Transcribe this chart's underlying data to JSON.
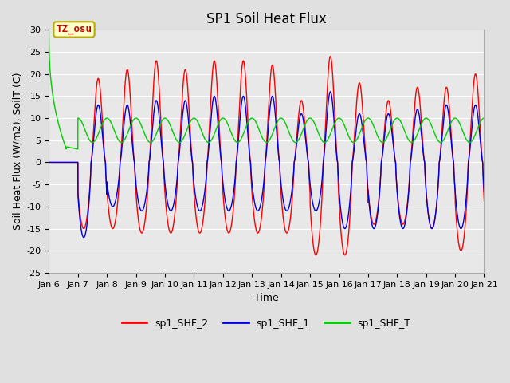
{
  "title": "SP1 Soil Heat Flux",
  "xlabel": "Time",
  "ylabel": "Soil Heat Flux (W/m2), SoilT (C)",
  "ylim": [
    -25,
    30
  ],
  "yticks": [
    -25,
    -20,
    -15,
    -10,
    -5,
    0,
    5,
    10,
    15,
    20,
    25,
    30
  ],
  "xtick_labels": [
    "Jan 6",
    "Jan 7",
    "Jan 8",
    "Jan 9",
    "Jan 10",
    "Jan 11",
    "Jan 12",
    "Jan 13",
    "Jan 14",
    "Jan 15",
    "Jan 16",
    "Jan 17",
    "Jan 18",
    "Jan 19",
    "Jan 20",
    "Jan 21"
  ],
  "legend_labels": [
    "sp1_SHF_2",
    "sp1_SHF_1",
    "sp1_SHF_T"
  ],
  "line_colors": [
    "#ff0000",
    "#0000dd",
    "#00cc00"
  ],
  "annotation_text": "TZ_osu",
  "annotation_bbox_fc": "#ffffcc",
  "annotation_bbox_ec": "#bbaa00",
  "background_color": "#e0e0e0",
  "plot_bg_color": "#e8e8e8",
  "grid_color": "#ffffff",
  "title_fontsize": 12,
  "axis_label_fontsize": 9,
  "tick_fontsize": 8,
  "legend_fontsize": 9
}
